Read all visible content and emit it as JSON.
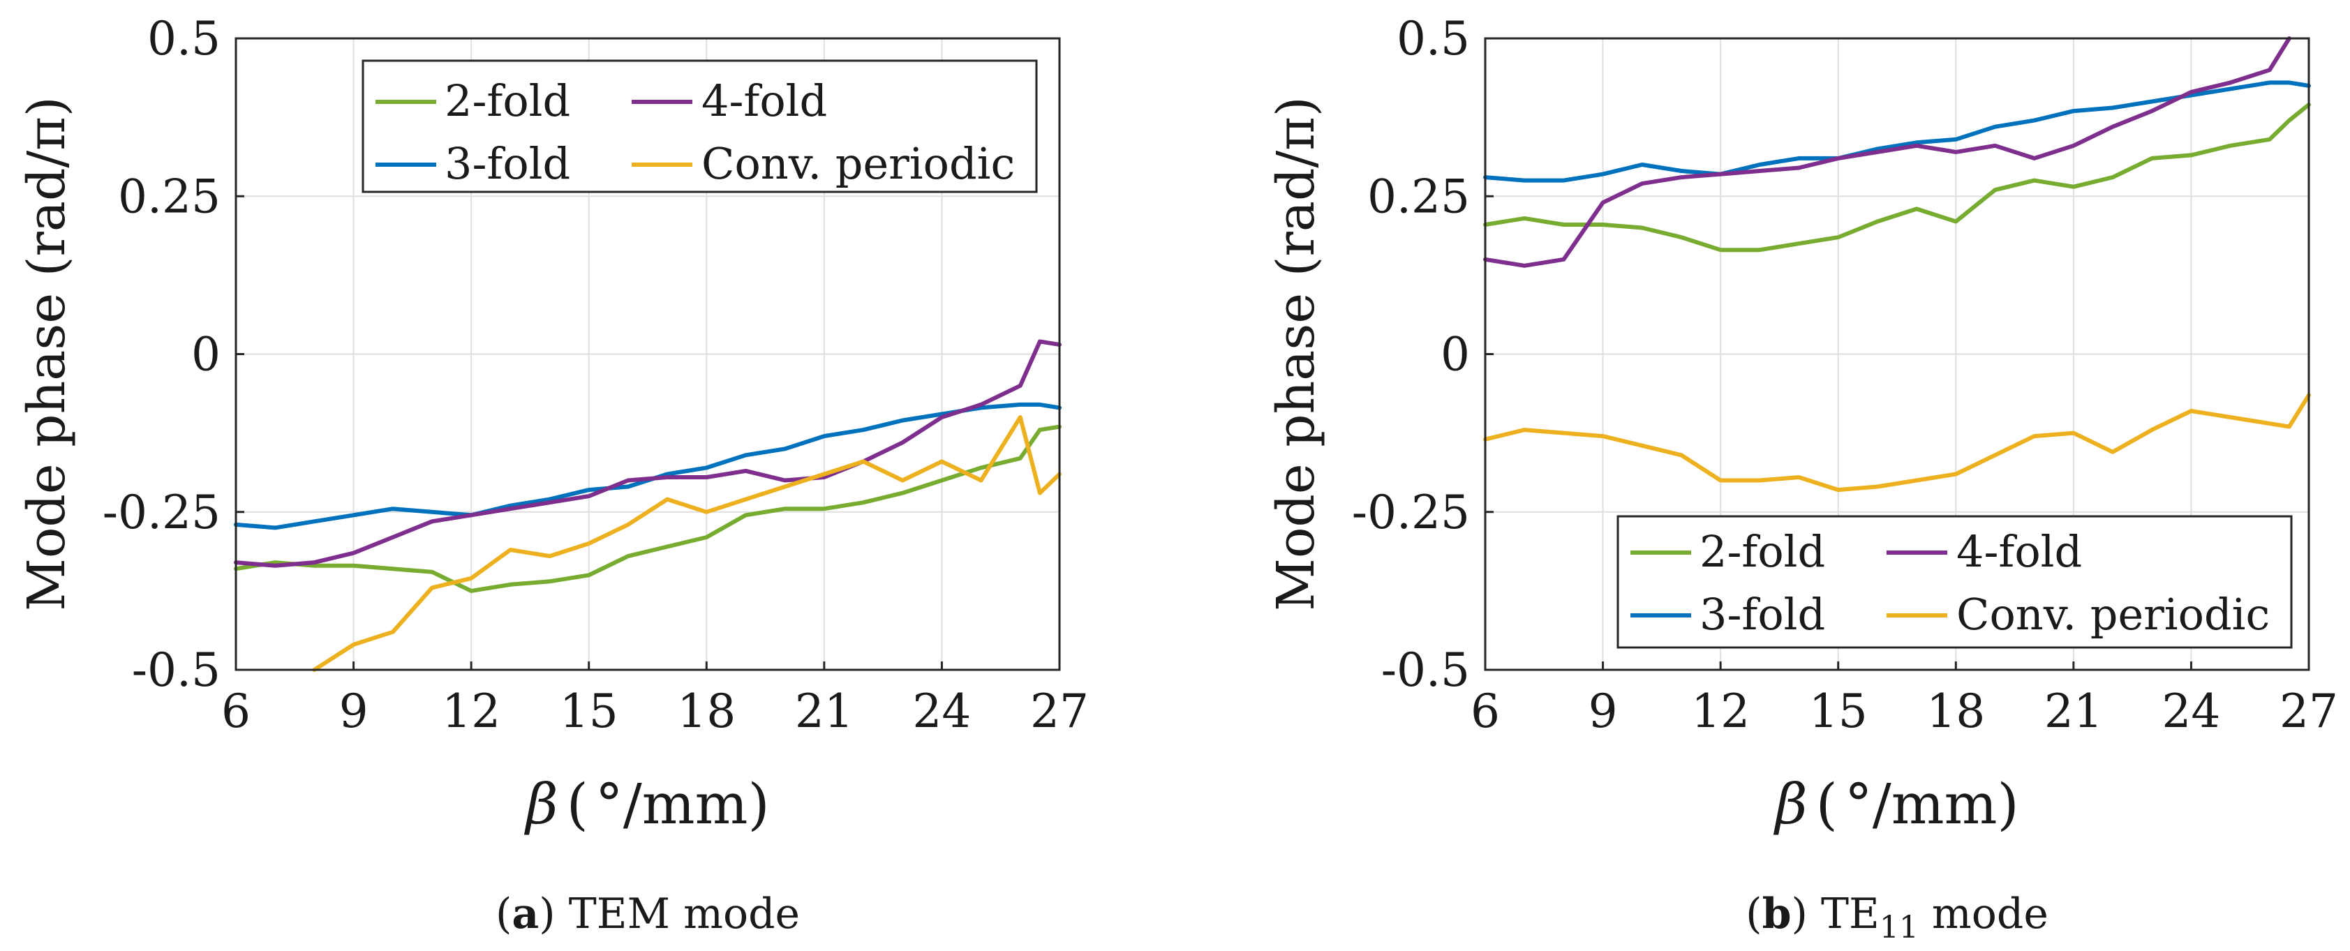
{
  "chart_data": [
    {
      "type": "line",
      "panel": "a",
      "caption_label": "a",
      "caption_text": "TEM mode",
      "ylabel": "Mode phase (rad/π)",
      "xlabel_symbol": "β",
      "xlabel_unit": "°/mm",
      "xlim": [
        6,
        27
      ],
      "ylim": [
        -0.5,
        0.5
      ],
      "xticks": [
        6,
        9,
        12,
        15,
        18,
        21,
        24,
        27
      ],
      "xtick_labels": [
        "6",
        "9",
        "12",
        "15",
        "18",
        "21",
        "24",
        "27"
      ],
      "yticks": [
        -0.5,
        -0.25,
        0,
        0.25,
        0.5
      ],
      "ytick_labels": [
        "-0.5",
        "-0.25",
        "0",
        "0.25",
        "0.5"
      ],
      "grid": true,
      "legend_position": "top-right",
      "legend_entries": [
        "2-fold",
        "4-fold",
        "3-fold",
        "Conv. periodic"
      ],
      "x": [
        6,
        7,
        8,
        9,
        10,
        11,
        12,
        13,
        14,
        15,
        16,
        17,
        18,
        19,
        20,
        21,
        22,
        23,
        24,
        25,
        26,
        26.5,
        27
      ],
      "series": [
        {
          "name": "2-fold",
          "color": "#77ac30",
          "values": [
            -0.34,
            -0.33,
            -0.335,
            -0.335,
            -0.34,
            -0.345,
            -0.375,
            -0.365,
            -0.36,
            -0.35,
            -0.32,
            -0.305,
            -0.29,
            -0.255,
            -0.245,
            -0.245,
            -0.235,
            -0.22,
            -0.2,
            -0.18,
            -0.165,
            -0.12,
            -0.115
          ]
        },
        {
          "name": "3-fold",
          "color": "#0072bd",
          "values": [
            -0.27,
            -0.275,
            -0.265,
            -0.255,
            -0.245,
            -0.25,
            -0.255,
            -0.24,
            -0.23,
            -0.215,
            -0.21,
            -0.19,
            -0.18,
            -0.16,
            -0.15,
            -0.13,
            -0.12,
            -0.105,
            -0.095,
            -0.085,
            -0.08,
            -0.08,
            -0.085
          ]
        },
        {
          "name": "4-fold",
          "color": "#7e2f8e",
          "values": [
            -0.33,
            -0.335,
            -0.33,
            -0.315,
            -0.29,
            -0.265,
            -0.255,
            -0.245,
            -0.235,
            -0.225,
            -0.2,
            -0.195,
            -0.195,
            -0.185,
            -0.2,
            -0.195,
            -0.17,
            -0.14,
            -0.1,
            -0.08,
            -0.05,
            0.02,
            0.015
          ]
        },
        {
          "name": "Conv. periodic",
          "color": "#edb120",
          "values": [
            null,
            null,
            -0.5,
            -0.46,
            -0.44,
            -0.37,
            -0.355,
            -0.31,
            -0.32,
            -0.3,
            -0.27,
            -0.23,
            -0.25,
            -0.23,
            -0.21,
            -0.19,
            -0.17,
            -0.2,
            -0.17,
            -0.2,
            -0.1,
            -0.22,
            -0.19
          ]
        }
      ]
    },
    {
      "type": "line",
      "panel": "b",
      "caption_label": "b",
      "caption_text_main": "TE",
      "caption_text_sub": "11",
      "caption_text_after": " mode",
      "ylabel": "Mode phase (rad/π)",
      "xlabel_symbol": "β",
      "xlabel_unit": "°/mm",
      "xlim": [
        6,
        27
      ],
      "ylim": [
        -0.5,
        0.5
      ],
      "xticks": [
        6,
        9,
        12,
        15,
        18,
        21,
        24,
        27
      ],
      "xtick_labels": [
        "6",
        "9",
        "12",
        "15",
        "18",
        "21",
        "24",
        "27"
      ],
      "yticks": [
        -0.5,
        -0.25,
        0,
        0.25,
        0.5
      ],
      "ytick_labels": [
        "-0.5",
        "-0.25",
        "0",
        "0.25",
        "0.5"
      ],
      "grid": true,
      "legend_position": "bottom-right",
      "legend_entries": [
        "2-fold",
        "4-fold",
        "3-fold",
        "Conv. periodic"
      ],
      "x": [
        6,
        7,
        8,
        9,
        10,
        11,
        12,
        13,
        14,
        15,
        16,
        17,
        18,
        19,
        20,
        21,
        22,
        23,
        24,
        25,
        26,
        26.5,
        27
      ],
      "series": [
        {
          "name": "2-fold",
          "color": "#77ac30",
          "values": [
            0.205,
            0.215,
            0.205,
            0.205,
            0.2,
            0.185,
            0.165,
            0.165,
            0.175,
            0.185,
            0.21,
            0.23,
            0.21,
            0.26,
            0.275,
            0.265,
            0.28,
            0.31,
            0.315,
            0.33,
            0.34,
            0.37,
            0.395
          ]
        },
        {
          "name": "3-fold",
          "color": "#0072bd",
          "values": [
            0.28,
            0.275,
            0.275,
            0.285,
            0.3,
            0.29,
            0.285,
            0.3,
            0.31,
            0.31,
            0.325,
            0.335,
            0.34,
            0.36,
            0.37,
            0.385,
            0.39,
            0.4,
            0.41,
            0.42,
            0.43,
            0.43,
            0.425
          ]
        },
        {
          "name": "4-fold",
          "color": "#7e2f8e",
          "values": [
            0.15,
            0.14,
            0.15,
            0.24,
            0.27,
            0.28,
            0.285,
            0.29,
            0.295,
            0.31,
            0.32,
            0.33,
            0.32,
            0.33,
            0.31,
            0.33,
            0.36,
            0.385,
            0.415,
            0.43,
            0.45,
            0.5,
            null
          ]
        },
        {
          "name": "Conv. periodic",
          "color": "#edb120",
          "values": [
            -0.135,
            -0.12,
            -0.125,
            -0.13,
            -0.145,
            -0.16,
            -0.2,
            -0.2,
            -0.195,
            -0.215,
            -0.21,
            -0.2,
            -0.19,
            -0.16,
            -0.13,
            -0.125,
            -0.155,
            -0.12,
            -0.09,
            -0.1,
            -0.11,
            -0.115,
            -0.065
          ]
        }
      ]
    }
  ]
}
